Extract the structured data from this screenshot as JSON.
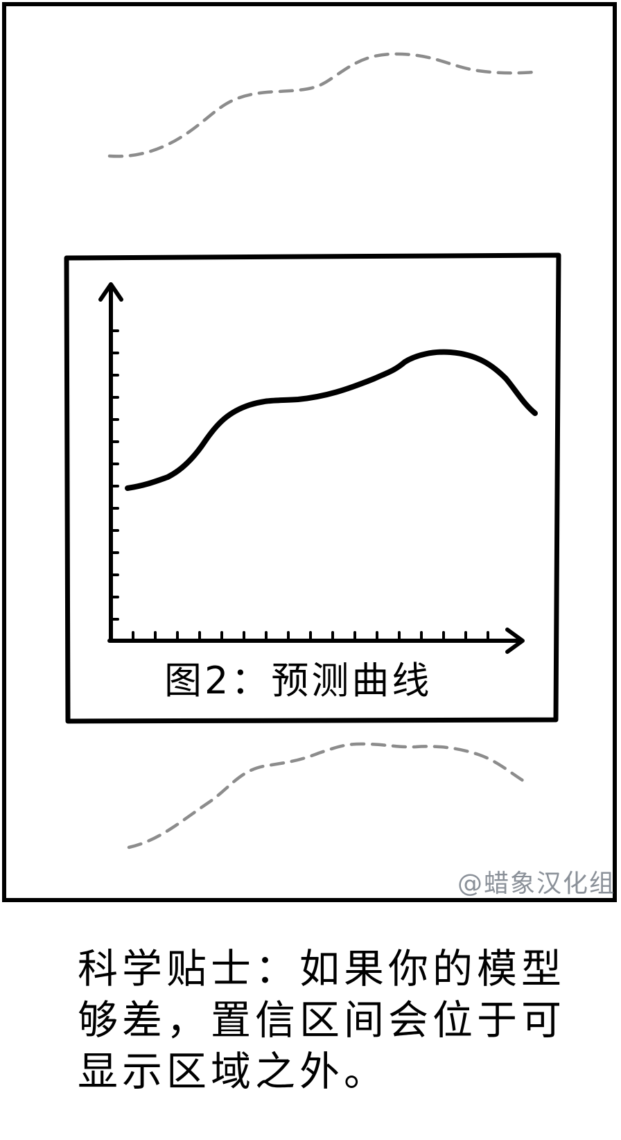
{
  "figure": {
    "caption": "图2：预测曲线"
  },
  "watermark": "@蜡象汉化组",
  "tip": {
    "lines": [
      "科学贴士：如果你的模型",
      "够差，置信区间会位于可",
      "显示区域之外。"
    ]
  },
  "colors": {
    "ink": "#000000",
    "bound_dash": "#8c8c8c",
    "watermark": "#8a9098"
  }
}
